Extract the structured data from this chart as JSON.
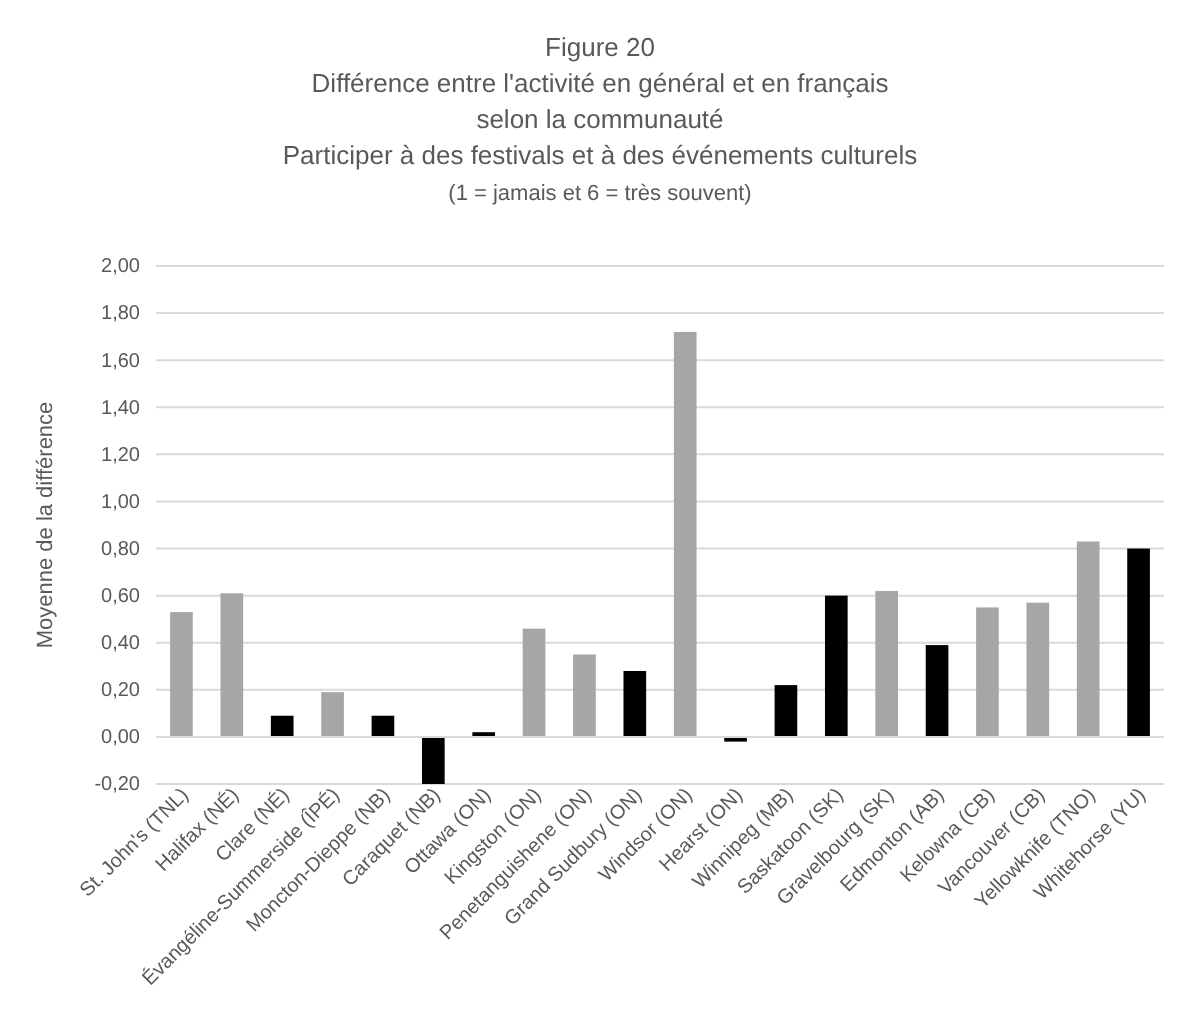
{
  "chart_data": {
    "type": "bar",
    "title": "Figure 20",
    "subtitle": "Différence entre l'activité en général et en français\nselon la communauté\nParticiper à des festivals et à des événements culturels\n(1 = jamais et 6 = très souvent)",
    "ylabel": "Moyenne de la différence",
    "categories": [
      "St. John's (TNL)",
      "Halifax (NÉ)",
      "Clare (NÉ)",
      "Évangéline-Summerside (ÎPÉ)",
      "Moncton-Dieppe (NB)",
      "Caraquet (NB)",
      "Ottawa (ON)",
      "Kingston (ON)",
      "Penetanguishene (ON)",
      "Grand Sudbury (ON)",
      "Windsor (ON)",
      "Hearst (ON)",
      "Winnipeg (MB)",
      "Saskatoon (SK)",
      "Gravelbourg (SK)",
      "Edmonton (AB)",
      "Kelowna (CB)",
      "Vancouver (CB)",
      "Yellowknife (TNO)",
      "Whitehorse (YU)"
    ],
    "values": [
      0.53,
      0.61,
      0.09,
      0.19,
      0.09,
      -0.2,
      0.02,
      0.46,
      0.35,
      0.28,
      1.72,
      -0.02,
      0.22,
      0.6,
      0.62,
      0.39,
      0.55,
      0.57,
      0.83,
      0.8
    ],
    "colors": [
      "#a6a6a6",
      "#a6a6a6",
      "#000000",
      "#a6a6a6",
      "#000000",
      "#000000",
      "#000000",
      "#a6a6a6",
      "#a6a6a6",
      "#000000",
      "#a6a6a6",
      "#000000",
      "#000000",
      "#000000",
      "#a6a6a6",
      "#000000",
      "#a6a6a6",
      "#a6a6a6",
      "#a6a6a6",
      "#000000"
    ],
    "ylim": [
      -0.2,
      2
    ],
    "yticks": [
      {
        "value": -0.2,
        "label": "-0,20"
      },
      {
        "value": 0,
        "label": "0,00"
      },
      {
        "value": 0.2,
        "label": "0,20"
      },
      {
        "value": 0.4,
        "label": "0,40"
      },
      {
        "value": 0.6,
        "label": "0,60"
      },
      {
        "value": 0.8,
        "label": "0,80"
      },
      {
        "value": 1,
        "label": "1,00"
      },
      {
        "value": 1.2,
        "label": "1,20"
      },
      {
        "value": 1.4,
        "label": "1,40"
      },
      {
        "value": 1.6,
        "label": "1,60"
      },
      {
        "value": 1.8,
        "label": "1,80"
      },
      {
        "value": 2,
        "label": "2,00"
      }
    ],
    "grid": "y"
  }
}
